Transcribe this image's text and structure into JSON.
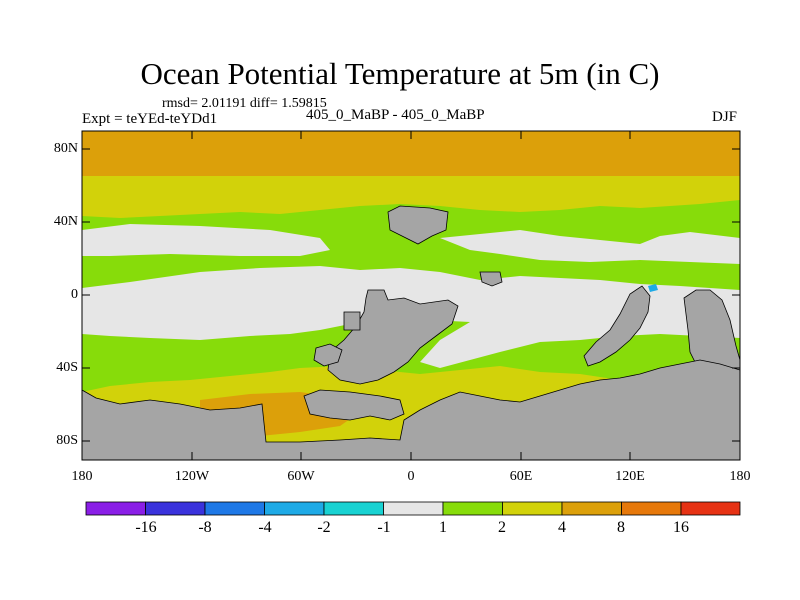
{
  "title": "Ocean Potential Temperature at 5m (in C)",
  "stats_text": "rmsd= 2.01191 diff= 1.59815",
  "experiment_text": "Expt = teYEd-teYDd1",
  "cases_text": "405_0_MaBP - 405_0_MaBP",
  "season": "DJF",
  "lat_ticks": [
    "80N",
    "40N",
    "0",
    "40S",
    "80S"
  ],
  "lon_ticks": [
    "180",
    "120W",
    "60W",
    "0",
    "60E",
    "120E",
    "180"
  ],
  "colorbar": {
    "labels": [
      "-16",
      "-8",
      "-4",
      "-2",
      "-1",
      "1",
      "2",
      "4",
      "8",
      "16"
    ],
    "colors": [
      "#8a1ee6",
      "#3a32dc",
      "#1e78e6",
      "#1eaae6",
      "#19d2d2",
      "#e6e6e6",
      "#87dc0a",
      "#d2d20a",
      "#dca00a",
      "#e6780a",
      "#e63214"
    ]
  },
  "map_colors": {
    "land": "#a5a5a5",
    "near_zero": "#e6e6e6",
    "warm_1_2": "#87dc0a",
    "warm_2_4": "#d2d20a",
    "warm_4_8": "#dca00a",
    "warm_8_16": "#e6780a",
    "cool": "#1eaae6"
  }
}
